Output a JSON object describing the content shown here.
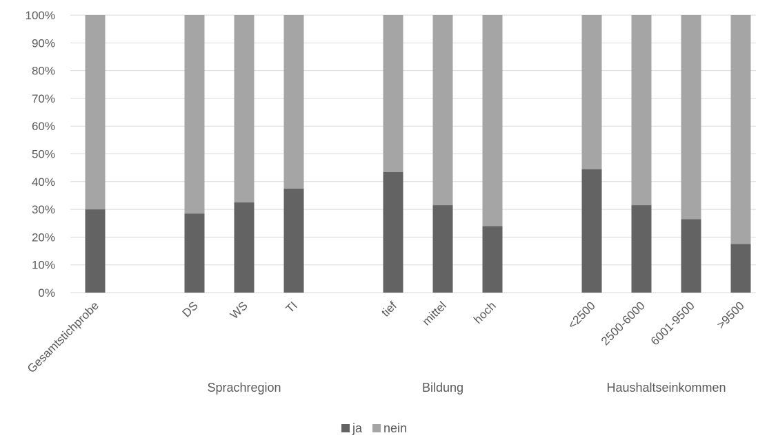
{
  "chart_data": {
    "type": "bar",
    "stacked": true,
    "percent_stacked": true,
    "categories": [
      "Gesamtstichprobe",
      "DS",
      "WS",
      "TI",
      "tief",
      "mittel",
      "hoch",
      "<2500",
      "2500-6000",
      "6001-9500",
      ">9500"
    ],
    "category_groups": [
      "",
      "Sprachregion",
      "Sprachregion",
      "Sprachregion",
      "Bildung",
      "Bildung",
      "Bildung",
      "Haushaltseinkommen",
      "Haushaltseinkommen",
      "Haushaltseinkommen",
      "Haushaltseinkommen"
    ],
    "group_labels": [
      "Sprachregion",
      "Bildung",
      "Haushaltseinkommen"
    ],
    "series": [
      {
        "name": "ja",
        "color": "#636363",
        "values": [
          30,
          28.5,
          32.5,
          37.5,
          43.5,
          31.5,
          24,
          44.5,
          31.5,
          26.5,
          17.5
        ]
      },
      {
        "name": "nein",
        "color": "#a5a5a5",
        "values": [
          70,
          71.5,
          67.5,
          62.5,
          56.5,
          68.5,
          76,
          55.5,
          68.5,
          73.5,
          82.5
        ]
      }
    ],
    "ylim": [
      0,
      100
    ],
    "yticks": [
      "0%",
      "10%",
      "20%",
      "30%",
      "40%",
      "50%",
      "60%",
      "70%",
      "80%",
      "90%",
      "100%"
    ],
    "grid": true,
    "legend_position": "bottom"
  }
}
